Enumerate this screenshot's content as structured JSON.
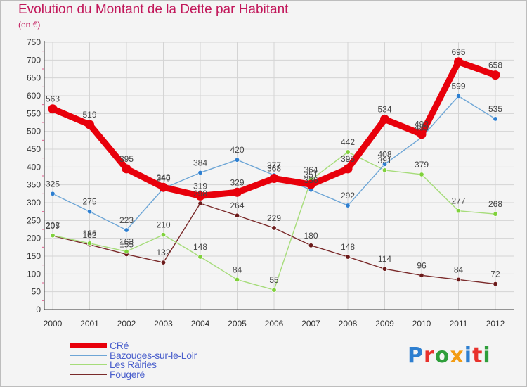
{
  "header": {
    "title": "Evolution du Montant de la Dette par Habitant",
    "subtitle": "(en €)"
  },
  "colors": {
    "title": "#c2185b",
    "legend_text": "#4a5fcc"
  },
  "logo": {
    "letters": [
      "P",
      "r",
      "o",
      "x",
      "i",
      "t",
      "i"
    ],
    "colors": [
      "#2e7fd0",
      "#e8312b",
      "#2e9e3a",
      "#f39c12",
      "#2e7fd0",
      "#e8312b",
      "#2e9e3a"
    ]
  },
  "chart_data": {
    "type": "line",
    "title": "Evolution du Montant de la Dette par Habitant",
    "ylabel": "(en €)",
    "xlabel": "",
    "x": [
      "2000",
      "2001",
      "2002",
      "2003",
      "2004",
      "2005",
      "2006",
      "2007",
      "2008",
      "2009",
      "2010",
      "2011",
      "2012"
    ],
    "ylim": [
      0,
      750
    ],
    "yticks": [
      "0",
      "50",
      "100",
      "150",
      "200",
      "250",
      "300",
      "350",
      "400",
      "450",
      "500",
      "550",
      "600",
      "650",
      "700",
      "750"
    ],
    "grid": true,
    "legend_position": "bottom-left",
    "series": [
      {
        "name": "CRé",
        "color": "#e8000b",
        "values": [
          563,
          519,
          395,
          343,
          319,
          329,
          368,
          351,
          395,
          534,
          492,
          695,
          658
        ],
        "labels": [
          "563",
          "519",
          "395",
          "343",
          "319",
          "329",
          "368",
          "351",
          "395",
          "534",
          "492",
          "695",
          "658"
        ]
      },
      {
        "name": "Bazouges-sur-le-Loir",
        "color": "#6ea6d6",
        "marker": "#2e7fd0",
        "values": [
          325,
          275,
          223,
          340,
          384,
          420,
          377,
          336,
          292,
          408,
          483,
          599,
          535
        ],
        "labels": [
          "325",
          "275",
          "223",
          "340",
          "384",
          "420",
          "377",
          "336",
          "292",
          "408",
          "483",
          "599",
          "535"
        ]
      },
      {
        "name": "Les Rairies",
        "color": "#a6dc7a",
        "marker": "#7fd13b",
        "values": [
          208,
          186,
          163,
          210,
          148,
          84,
          55,
          364,
          442,
          391,
          379,
          277,
          268
        ],
        "labels": [
          "208",
          "186",
          "163",
          "210",
          "148",
          "84",
          "55",
          "364",
          "442",
          "391",
          "379",
          "277",
          "268"
        ]
      },
      {
        "name": "Fougeré",
        "color": "#7a2a2a",
        "marker": "#6b1a1a",
        "values": [
          207,
          182,
          155,
          132,
          298,
          264,
          229,
          180,
          148,
          114,
          96,
          84,
          72
        ],
        "labels": [
          "207",
          "182",
          "155",
          "132",
          "298",
          "264",
          "229",
          "180",
          "148",
          "114",
          "96",
          "84",
          "72"
        ]
      }
    ]
  }
}
